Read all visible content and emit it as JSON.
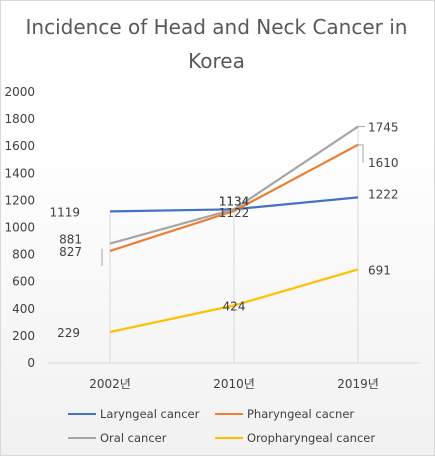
{
  "chart_data": {
    "type": "line",
    "title": "Incidence of Head and Neck Cancer in Korea",
    "title_lines": [
      "Incidence of Head and Neck Cancer in",
      "Korea"
    ],
    "categories": [
      "2002년",
      "2010년",
      "2019년"
    ],
    "ylim": [
      0,
      2000
    ],
    "yticks": [
      0,
      200,
      400,
      600,
      800,
      1000,
      1200,
      1400,
      1600,
      1800,
      2000
    ],
    "grid": "vertical-dropdown-lines",
    "legend_position": "bottom",
    "series": [
      {
        "name": "Laryngeal cancer",
        "color": "#4472C4",
        "values": [
          1119,
          1134,
          1222
        ]
      },
      {
        "name": "Pharyngeal cacner",
        "color": "#ED7D31",
        "values": [
          827,
          1122,
          1610
        ]
      },
      {
        "name": "Oral cancer",
        "color": "#A5A5A5",
        "values": [
          881,
          1134,
          1745
        ]
      },
      {
        "name": "Oropharyngeal cancer",
        "color": "#FFC000",
        "values": [
          229,
          424,
          691
        ]
      }
    ],
    "data_labels": [
      {
        "series": 0,
        "point": 0,
        "text": "1119"
      },
      {
        "series": 2,
        "point": 0,
        "text": "881"
      },
      {
        "series": 1,
        "point": 0,
        "text": "827"
      },
      {
        "series": 3,
        "point": 0,
        "text": "229"
      },
      {
        "series": 0,
        "point": 1,
        "text": "1134"
      },
      {
        "series": 2,
        "point": 1,
        "text": "1134"
      },
      {
        "series": 1,
        "point": 1,
        "text": "1122"
      },
      {
        "series": 3,
        "point": 1,
        "text": "424"
      },
      {
        "series": 2,
        "point": 2,
        "text": "1745"
      },
      {
        "series": 1,
        "point": 2,
        "text": "1610"
      },
      {
        "series": 0,
        "point": 2,
        "text": "1222"
      },
      {
        "series": 3,
        "point": 2,
        "text": "691"
      }
    ]
  }
}
